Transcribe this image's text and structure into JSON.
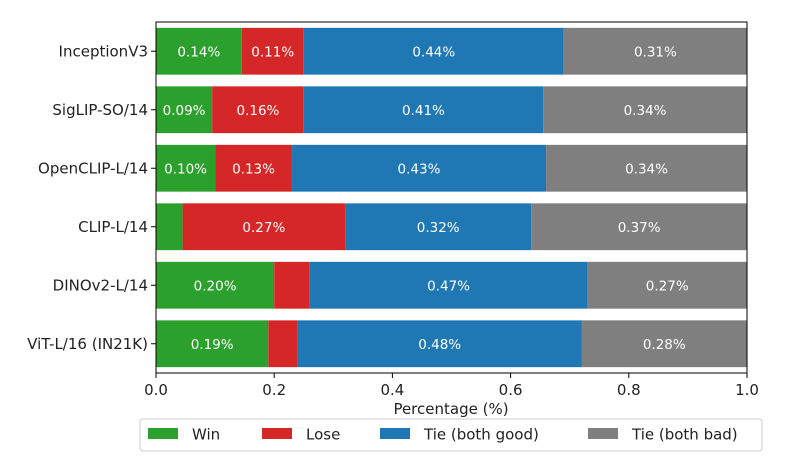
{
  "chart_data": {
    "type": "bar",
    "orientation": "horizontal",
    "stacked": true,
    "categories": [
      "InceptionV3",
      "SigLIP-SO/14",
      "OpenCLIP-L/14",
      "CLIP-L/14",
      "DINOv2-L/14",
      "ViT-L/16 (IN21K)"
    ],
    "series": [
      {
        "name": "Win",
        "color": "#2ca02c",
        "values": [
          0.145,
          0.095,
          0.1,
          0.045,
          0.2,
          0.19
        ],
        "labels": [
          "0.14%",
          "0.09%",
          "0.10%",
          "",
          "0.20%",
          "0.19%"
        ]
      },
      {
        "name": "Lose",
        "color": "#d62728",
        "values": [
          0.105,
          0.155,
          0.13,
          0.275,
          0.06,
          0.05
        ],
        "labels": [
          "0.11%",
          "0.16%",
          "0.13%",
          "0.27%",
          "",
          ""
        ]
      },
      {
        "name": "Tie (both good)",
        "color": "#1f77b4",
        "values": [
          0.44,
          0.405,
          0.43,
          0.315,
          0.47,
          0.48
        ],
        "labels": [
          "0.44%",
          "0.41%",
          "0.43%",
          "0.32%",
          "0.47%",
          "0.48%"
        ]
      },
      {
        "name": "Tie (both bad)",
        "color": "#7f7f7f",
        "values": [
          0.31,
          0.345,
          0.34,
          0.365,
          0.27,
          0.28
        ],
        "labels": [
          "0.31%",
          "0.34%",
          "0.34%",
          "0.37%",
          "0.27%",
          "0.28%"
        ]
      }
    ],
    "xlim": [
      0,
      1.0
    ],
    "xticks": [
      "0.0",
      "0.2",
      "0.4",
      "0.6",
      "0.8",
      "1.0"
    ],
    "xlabel": "Percentage (%)",
    "legend_placement": "bottom-center",
    "grid": false
  }
}
